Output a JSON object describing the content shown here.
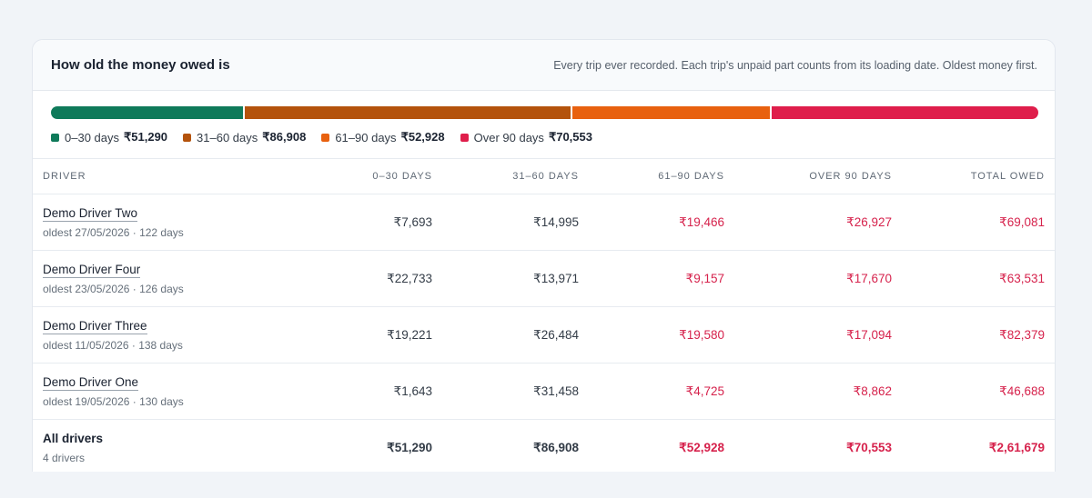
{
  "header": {
    "title": "How old the money owed is",
    "subtitle": "Every trip ever recorded. Each trip's unpaid part counts from its loading date. Oldest money first."
  },
  "aging": {
    "segments": [
      {
        "name": "0–30 days",
        "value": 51290,
        "value_label": "₹51,290",
        "color": "#0f7a5a"
      },
      {
        "name": "31–60 days",
        "value": 86908,
        "value_label": "₹86,908",
        "color": "#b4530c"
      },
      {
        "name": "61–90 days",
        "value": 52928,
        "value_label": "₹52,928",
        "color": "#e8610f"
      },
      {
        "name": "Over 90 days",
        "value": 70553,
        "value_label": "₹70,553",
        "color": "#df1e4b"
      }
    ]
  },
  "table": {
    "columns": [
      "DRIVER",
      "0–30 DAYS",
      "31–60 DAYS",
      "61–90 DAYS",
      "OVER 90 DAYS",
      "TOTAL OWED"
    ],
    "rows": [
      {
        "name": "Demo Driver Two",
        "detail": "oldest 27/05/2026 · 122 days",
        "cells": [
          "₹7,693",
          "₹14,995",
          "₹19,466",
          "₹26,927",
          "₹69,081"
        ]
      },
      {
        "name": "Demo Driver Four",
        "detail": "oldest 23/05/2026 · 126 days",
        "cells": [
          "₹22,733",
          "₹13,971",
          "₹9,157",
          "₹17,670",
          "₹63,531"
        ]
      },
      {
        "name": "Demo Driver Three",
        "detail": "oldest 11/05/2026 · 138 days",
        "cells": [
          "₹19,221",
          "₹26,484",
          "₹19,580",
          "₹17,094",
          "₹82,379"
        ]
      },
      {
        "name": "Demo Driver One",
        "detail": "oldest 19/05/2026 · 130 days",
        "cells": [
          "₹1,643",
          "₹31,458",
          "₹4,725",
          "₹8,862",
          "₹46,688"
        ]
      }
    ],
    "totals": {
      "name": "All drivers",
      "detail": "4 drivers",
      "cells": [
        "₹51,290",
        "₹86,908",
        "₹52,928",
        "₹70,553",
        "₹2,61,679"
      ]
    }
  }
}
